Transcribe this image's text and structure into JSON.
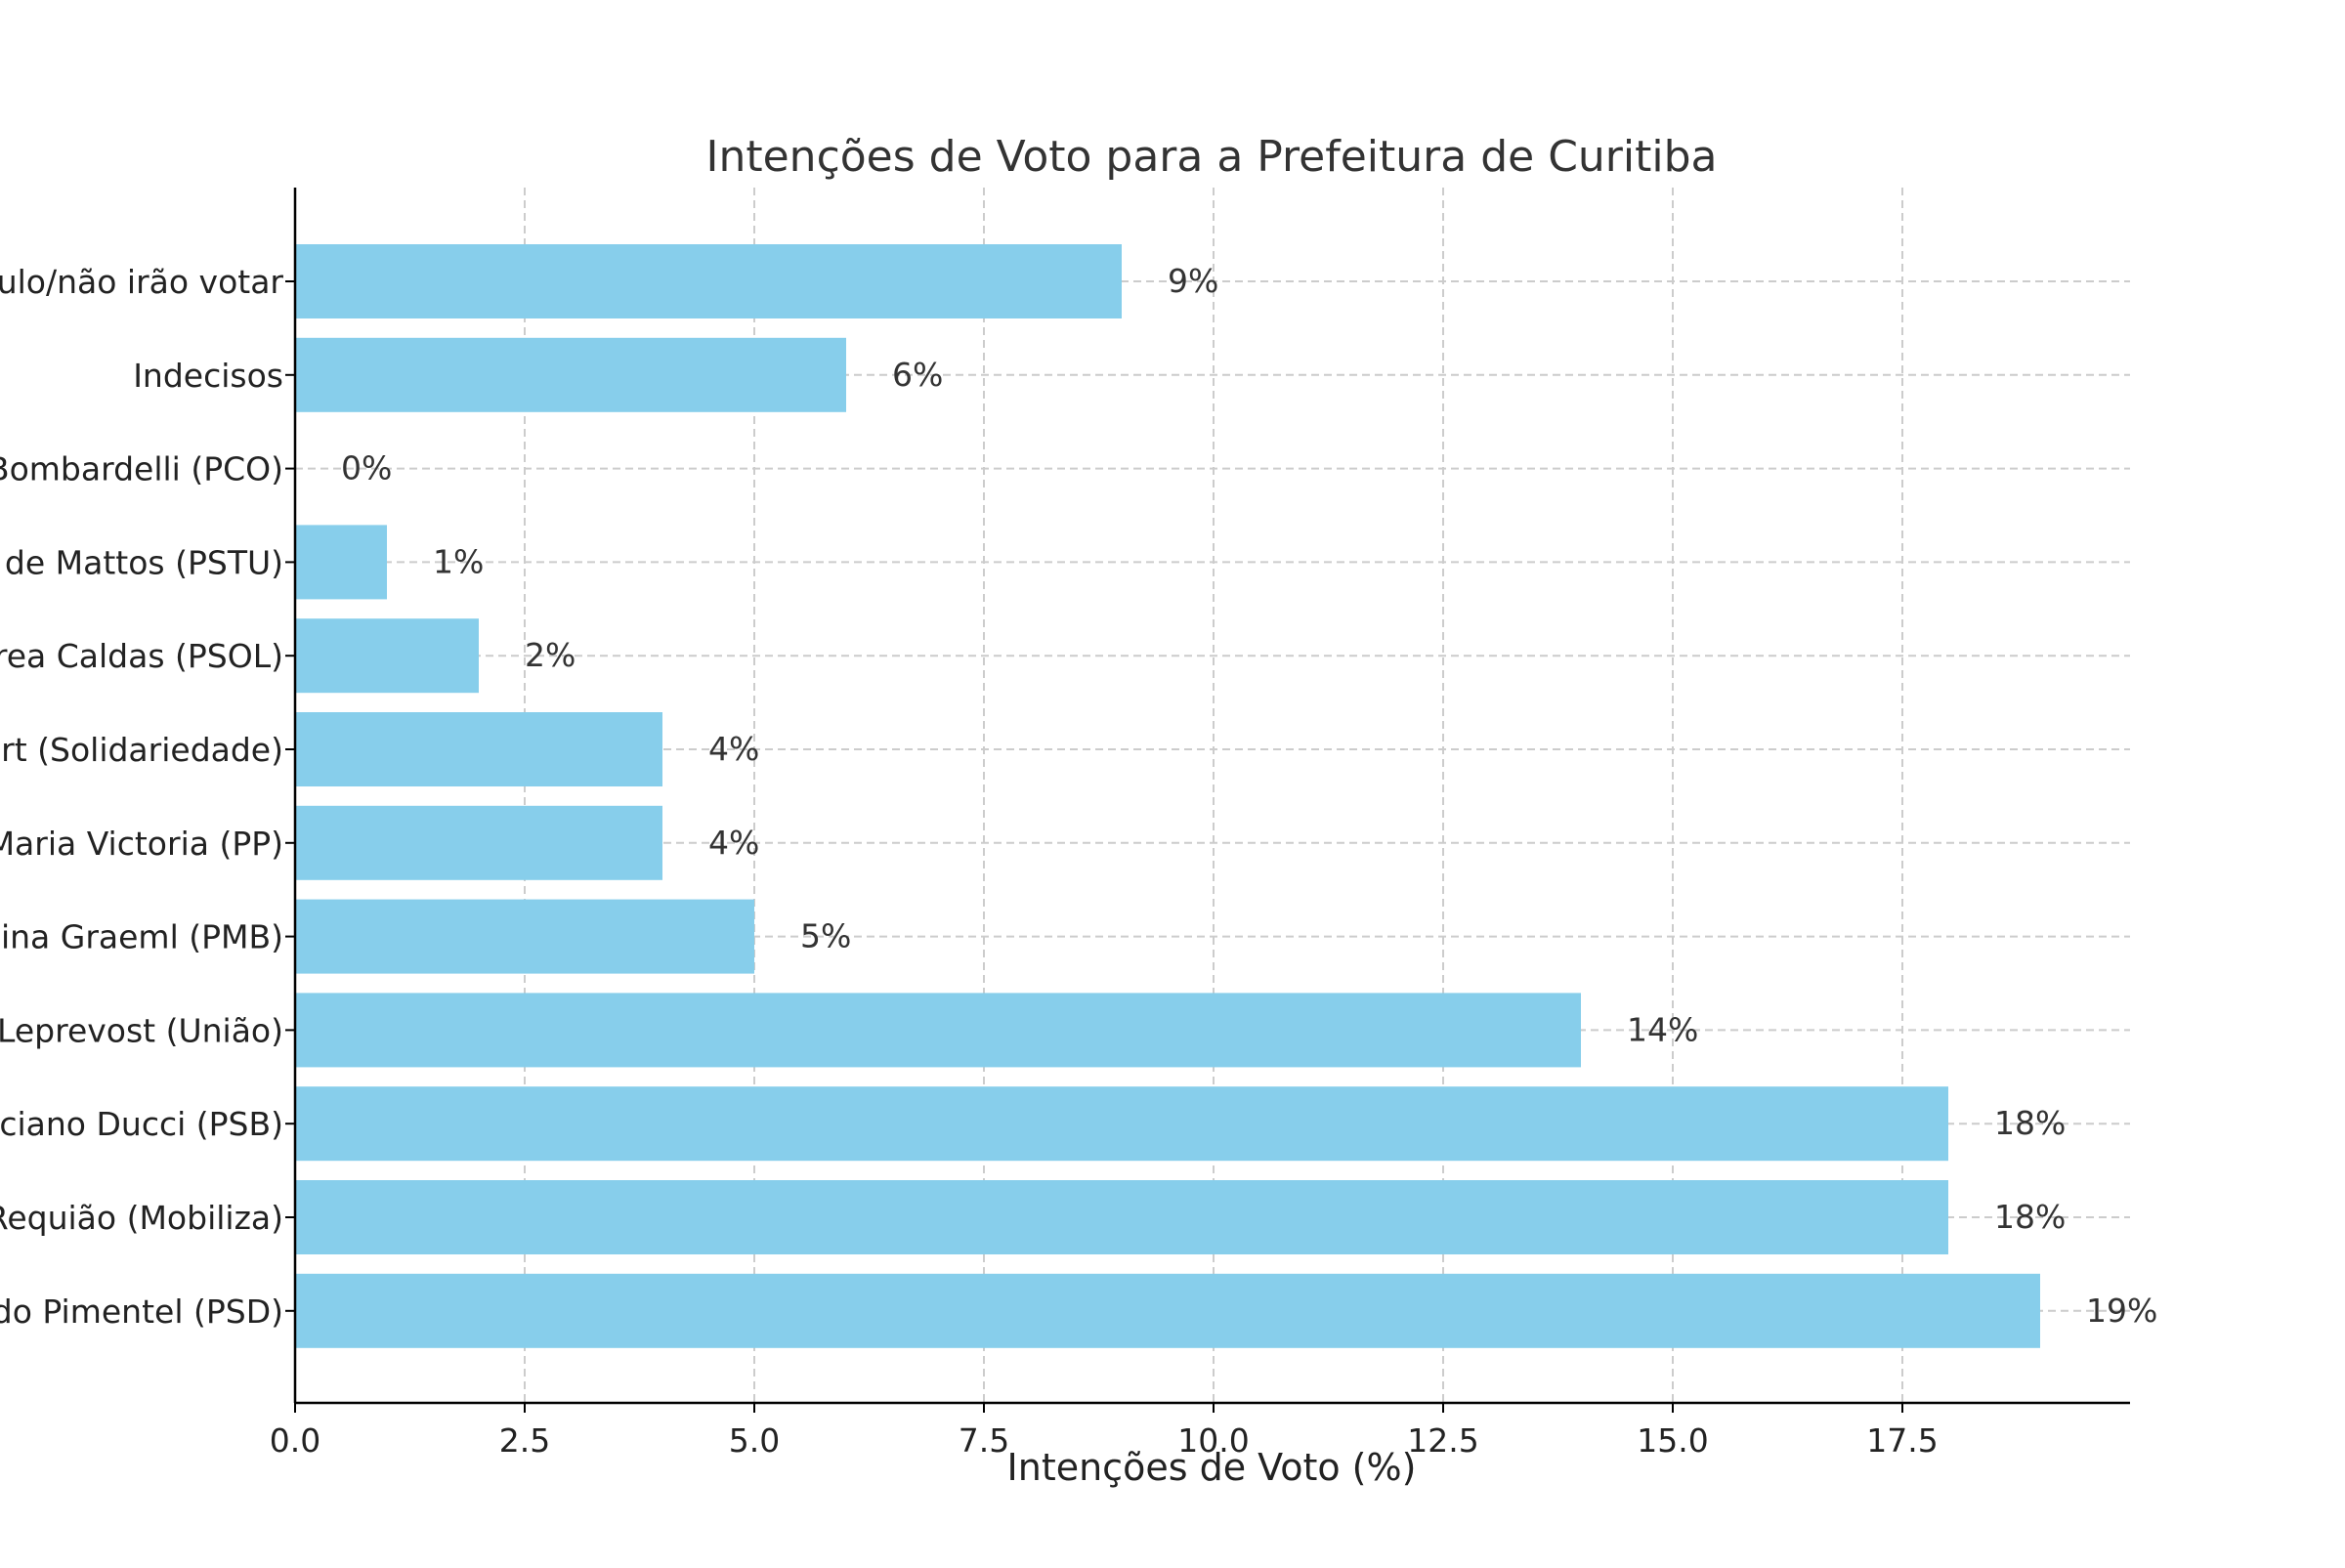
{
  "chart_data": {
    "type": "bar",
    "orientation": "horizontal",
    "title": "Intenções de Voto para a Prefeitura de Curitiba",
    "xlabel": "Intenções de Voto (%)",
    "ylabel": "",
    "xlim": [
      0,
      20
    ],
    "x_ticks": [
      "0.0",
      "2.5",
      "5.0",
      "7.5",
      "10.0",
      "12.5",
      "15.0",
      "17.5"
    ],
    "x_tick_values": [
      0,
      2.5,
      5,
      7.5,
      10,
      12.5,
      15,
      17.5
    ],
    "grid": true,
    "bar_color": "#87CEEB",
    "categories": [
      "ulo/não irão votar",
      "Indecisos",
      "Bombardelli (PCO)",
      "de Mattos (PSTU)",
      "rea Caldas (PSOL)",
      "rt (Solidariedade)",
      "Maria Victoria (PP)",
      "ina Graeml (PMB)",
      "Leprevost (União)",
      "ciano Ducci (PSB)",
      "Requião (Mobiliza)",
      "do Pimentel (PSD)"
    ],
    "values": [
      9,
      6,
      0,
      1,
      2,
      4,
      4,
      5,
      14,
      18,
      18,
      19
    ],
    "value_labels": [
      "9%",
      "6%",
      "0%",
      "1%",
      "2%",
      "4%",
      "4%",
      "5%",
      "14%",
      "18%",
      "18%",
      "19%"
    ]
  }
}
